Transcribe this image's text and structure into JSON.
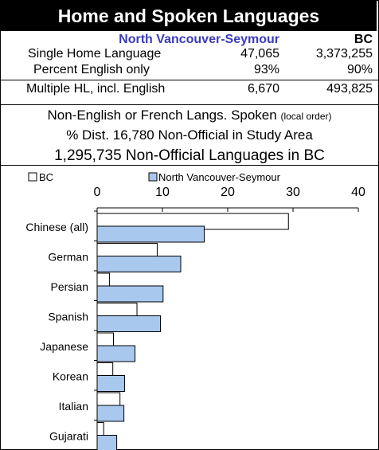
{
  "title": "Home and Spoken Languages",
  "stats": {
    "region_label": "North Vancouver-Seymour",
    "bc_label": "BC",
    "rows": [
      {
        "label": "Single Home Language",
        "region": "47,065",
        "bc": "3,373,255"
      },
      {
        "label": "Percent English only",
        "region": "93%",
        "bc": "90%"
      },
      {
        "label": "Multiple HL, incl. English",
        "region": "6,670",
        "bc": "493,825"
      }
    ]
  },
  "info": {
    "line1": "Non-English or French Langs. Spoken",
    "line1_note": "(local order)",
    "line2": "% Dist. 16,780 Non-Official in Study Area",
    "line3": "1,295,735 Non-Official Languages in BC"
  },
  "chart_data": {
    "type": "bar",
    "orientation": "horizontal",
    "categories": [
      "Chinese (all)",
      "German",
      "Persian",
      "Spanish",
      "Japanese",
      "Korean",
      "Italian",
      "Gujarati"
    ],
    "series": [
      {
        "name": "BC",
        "values": [
          29.3,
          9.2,
          1.9,
          6.1,
          2.5,
          2.4,
          3.5,
          1.0
        ],
        "color": "#ffffff"
      },
      {
        "name": "North Vancouver-Seymour",
        "values": [
          16.4,
          12.8,
          10.1,
          9.7,
          5.8,
          4.2,
          4.1,
          3.0
        ],
        "color": "#a9c8ee"
      }
    ],
    "xlim": [
      0,
      40
    ],
    "xticks": [
      0,
      10,
      20,
      30,
      40
    ],
    "legend_position": "top",
    "grid": false
  },
  "colors": {
    "region_text": "#3b3bb8",
    "region_bar": "#a9c8ee",
    "bc_bar": "#ffffff",
    "title_bg": "#000000"
  }
}
